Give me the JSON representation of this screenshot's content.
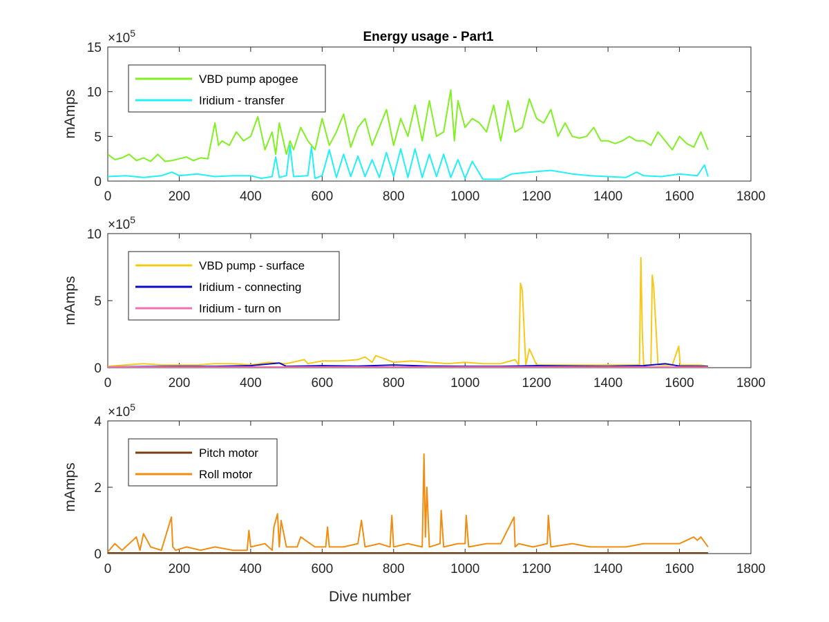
{
  "figure_title": "Energy usage - Part1",
  "chart_data": [
    {
      "type": "line",
      "title": "Energy usage - Part1",
      "xlabel": "",
      "ylabel": "mAmps",
      "xlim": [
        0,
        1800
      ],
      "ylim": [
        0,
        15
      ],
      "y_multiplier": "×10",
      "y_multiplier_exp": "5",
      "x_ticks": [
        "0",
        "200",
        "400",
        "600",
        "800",
        "1000",
        "1200",
        "1400",
        "1600",
        "1800"
      ],
      "y_ticks": [
        "0",
        "5",
        "10",
        "15"
      ],
      "legend_position": "top-left",
      "series": [
        {
          "name": "VBD pump apogee",
          "color": "#80f020",
          "x": [
            0,
            20,
            40,
            60,
            80,
            100,
            120,
            140,
            160,
            180,
            200,
            220,
            240,
            260,
            280,
            300,
            310,
            320,
            340,
            360,
            380,
            400,
            420,
            440,
            460,
            470,
            480,
            500,
            510,
            520,
            540,
            560,
            580,
            600,
            620,
            640,
            660,
            680,
            700,
            720,
            740,
            760,
            780,
            800,
            820,
            840,
            860,
            880,
            900,
            920,
            940,
            960,
            970,
            980,
            1000,
            1020,
            1040,
            1060,
            1080,
            1100,
            1120,
            1140,
            1160,
            1180,
            1200,
            1220,
            1240,
            1260,
            1280,
            1300,
            1320,
            1340,
            1360,
            1380,
            1400,
            1420,
            1440,
            1460,
            1480,
            1500,
            1520,
            1540,
            1560,
            1580,
            1600,
            1620,
            1640,
            1660,
            1680
          ],
          "y": [
            3.0,
            2.4,
            2.6,
            3.0,
            2.3,
            2.6,
            2.2,
            3.0,
            2.2,
            2.3,
            2.5,
            2.7,
            2.3,
            2.6,
            2.5,
            6.5,
            4.0,
            4.5,
            4.0,
            5.5,
            4.5,
            5.0,
            7.2,
            3.5,
            5.5,
            3.0,
            6.5,
            3.0,
            4.5,
            3.5,
            6.0,
            4.5,
            3.5,
            7.0,
            4.0,
            5.5,
            7.5,
            3.8,
            6.0,
            7.0,
            4.0,
            6.0,
            8.0,
            4.0,
            7.0,
            5.0,
            8.5,
            4.5,
            9.0,
            5.0,
            5.5,
            10.2,
            4.5,
            9.0,
            6.0,
            7.0,
            6.5,
            5.5,
            8.5,
            4.5,
            9.0,
            5.5,
            6.0,
            9.2,
            7.0,
            6.5,
            8.0,
            5.0,
            6.5,
            5.0,
            4.8,
            5.0,
            6.0,
            4.5,
            4.5,
            4.2,
            4.5,
            5.0,
            4.5,
            4.5,
            4.0,
            5.5,
            4.5,
            3.5,
            5.0,
            4.2,
            3.8,
            5.5,
            3.5
          ]
        },
        {
          "name": "Iridium - transfer",
          "color": "#20f0f8",
          "x": [
            0,
            50,
            100,
            150,
            180,
            200,
            250,
            300,
            350,
            400,
            430,
            460,
            470,
            480,
            500,
            510,
            520,
            560,
            570,
            580,
            600,
            620,
            640,
            660,
            680,
            700,
            720,
            740,
            760,
            780,
            800,
            820,
            840,
            860,
            880,
            900,
            920,
            940,
            960,
            980,
            1000,
            1020,
            1050,
            1100,
            1130,
            1180,
            1240,
            1300,
            1350,
            1400,
            1450,
            1480,
            1500,
            1550,
            1600,
            1650,
            1670,
            1680
          ],
          "y": [
            0.5,
            0.6,
            0.4,
            0.6,
            1.0,
            0.6,
            0.8,
            0.5,
            0.6,
            0.6,
            0.3,
            0.5,
            2.7,
            0.4,
            0.6,
            4.0,
            0.5,
            0.6,
            3.8,
            0.3,
            0.6,
            3.5,
            0.4,
            3.0,
            0.5,
            2.8,
            0.5,
            2.4,
            0.4,
            3.2,
            0.5,
            3.6,
            0.4,
            3.6,
            0.4,
            3.0,
            0.5,
            3.0,
            0.4,
            2.4,
            0.3,
            2.2,
            0.2,
            0.2,
            0.8,
            1.0,
            1.2,
            0.8,
            0.6,
            0.5,
            0.4,
            1.0,
            0.6,
            0.5,
            0.8,
            0.6,
            1.8,
            0.5
          ]
        }
      ]
    },
    {
      "type": "line",
      "title": "",
      "xlabel": "",
      "ylabel": "mAmps",
      "xlim": [
        0,
        1800
      ],
      "ylim": [
        0,
        10
      ],
      "y_multiplier": "×10",
      "y_multiplier_exp": "5",
      "x_ticks": [
        "0",
        "200",
        "400",
        "600",
        "800",
        "1000",
        "1200",
        "1400",
        "1600",
        "1800"
      ],
      "y_ticks": [
        "0",
        "5",
        "10"
      ],
      "legend_position": "top-left",
      "series": [
        {
          "name": "VBD pump - surface",
          "color": "#f8c818",
          "x": [
            0,
            50,
            100,
            150,
            200,
            250,
            300,
            350,
            400,
            450,
            500,
            550,
            560,
            600,
            650,
            700,
            720,
            740,
            750,
            800,
            850,
            900,
            950,
            1000,
            1050,
            1100,
            1140,
            1150,
            1155,
            1160,
            1170,
            1180,
            1200,
            1250,
            1300,
            1350,
            1400,
            1450,
            1480,
            1488,
            1492,
            1496,
            1500,
            1520,
            1524,
            1528,
            1540,
            1580,
            1598,
            1602,
            1620,
            1660,
            1680
          ],
          "y": [
            0.1,
            0.2,
            0.3,
            0.2,
            0.2,
            0.2,
            0.3,
            0.3,
            0.2,
            0.4,
            0.3,
            0.6,
            0.3,
            0.5,
            0.5,
            0.6,
            0.8,
            0.4,
            0.9,
            0.4,
            0.5,
            0.4,
            0.3,
            0.4,
            0.3,
            0.3,
            0.6,
            0.2,
            6.3,
            5.8,
            0.2,
            1.4,
            0.2,
            0.2,
            0.2,
            0.2,
            0.2,
            0.2,
            0.2,
            0.2,
            8.2,
            2.5,
            0.2,
            0.2,
            6.9,
            6.0,
            0.2,
            0.2,
            1.6,
            0.2,
            0.2,
            0.2,
            0.1
          ]
        },
        {
          "name": "Iridium - connecting",
          "color": "#0a0ac8",
          "x": [
            0,
            100,
            200,
            300,
            400,
            480,
            500,
            600,
            700,
            800,
            900,
            1000,
            1100,
            1200,
            1300,
            1400,
            1500,
            1560,
            1600,
            1680
          ],
          "y": [
            0.05,
            0.08,
            0.1,
            0.1,
            0.15,
            0.35,
            0.1,
            0.15,
            0.12,
            0.2,
            0.12,
            0.1,
            0.1,
            0.15,
            0.12,
            0.1,
            0.15,
            0.3,
            0.12,
            0.1
          ]
        },
        {
          "name": "Iridium - turn on",
          "color": "#f070b0",
          "x": [
            0,
            200,
            400,
            600,
            800,
            1000,
            1200,
            1400,
            1600,
            1680
          ],
          "y": [
            0.05,
            0.05,
            0.05,
            0.05,
            0.05,
            0.05,
            0.05,
            0.05,
            0.05,
            0.05
          ]
        }
      ]
    },
    {
      "type": "line",
      "title": "",
      "xlabel": "Dive number",
      "ylabel": "mAmps",
      "xlim": [
        0,
        1800
      ],
      "ylim": [
        0,
        4
      ],
      "y_multiplier": "×10",
      "y_multiplier_exp": "5",
      "x_ticks": [
        "0",
        "200",
        "400",
        "600",
        "800",
        "1000",
        "1200",
        "1400",
        "1600",
        "1800"
      ],
      "y_ticks": [
        "0",
        "2",
        "4"
      ],
      "legend_position": "top-left",
      "series": [
        {
          "name": "Pitch motor",
          "color": "#7a3e10",
          "x": [
            0,
            200,
            400,
            600,
            800,
            1000,
            1200,
            1400,
            1600,
            1680
          ],
          "y": [
            0.02,
            0.02,
            0.02,
            0.02,
            0.02,
            0.02,
            0.02,
            0.02,
            0.02,
            0.02
          ]
        },
        {
          "name": "Roll motor",
          "color": "#f08c10",
          "x": [
            0,
            20,
            40,
            80,
            90,
            100,
            120,
            150,
            178,
            182,
            190,
            220,
            260,
            300,
            350,
            390,
            395,
            400,
            440,
            460,
            465,
            475,
            480,
            485,
            500,
            530,
            540,
            580,
            610,
            615,
            620,
            660,
            700,
            710,
            720,
            760,
            790,
            795,
            800,
            840,
            880,
            885,
            889,
            893,
            900,
            930,
            933,
            940,
            980,
            1000,
            1003,
            1010,
            1060,
            1100,
            1137,
            1140,
            1150,
            1190,
            1230,
            1233,
            1240,
            1300,
            1350,
            1400,
            1450,
            1500,
            1530,
            1560,
            1600,
            1620,
            1640,
            1650,
            1660,
            1680
          ],
          "y": [
            0.05,
            0.3,
            0.1,
            0.5,
            0.1,
            0.6,
            0.2,
            0.1,
            1.1,
            0.2,
            0.1,
            0.2,
            0.1,
            0.2,
            0.1,
            0.1,
            0.7,
            0.2,
            0.3,
            0.1,
            0.8,
            1.2,
            0.2,
            1.0,
            0.2,
            0.2,
            0.5,
            0.2,
            0.2,
            0.8,
            0.2,
            0.2,
            0.3,
            1.0,
            0.2,
            0.3,
            0.2,
            1.15,
            0.2,
            0.3,
            0.2,
            3.0,
            0.5,
            2.0,
            0.2,
            0.3,
            1.3,
            0.2,
            0.3,
            0.3,
            1.15,
            0.2,
            0.3,
            0.3,
            1.1,
            0.2,
            0.3,
            0.2,
            0.3,
            1.15,
            0.2,
            0.3,
            0.2,
            0.2,
            0.2,
            0.3,
            0.3,
            0.3,
            0.3,
            0.4,
            0.5,
            0.4,
            0.5,
            0.2
          ]
        }
      ]
    }
  ]
}
